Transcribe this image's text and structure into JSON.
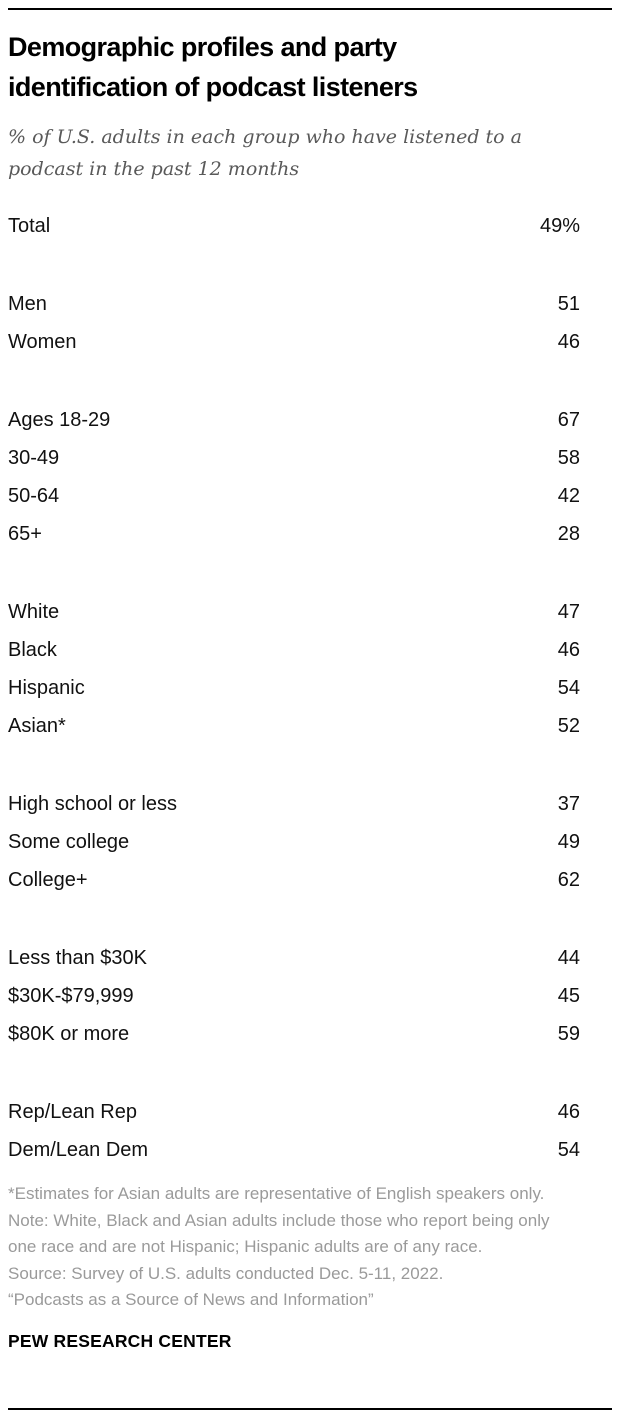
{
  "header": {
    "title": "Demographic profiles and party identification of podcast listeners",
    "subtitle": "% of U.S. adults in each group who have listened to a podcast in the past 12 months"
  },
  "chart_data": {
    "type": "table",
    "title": "Demographic profiles and party identification of podcast listeners",
    "subtitle": "% of U.S. adults in each group who have listened to a podcast in the past 12 months",
    "value_unit": "percent",
    "groups": [
      {
        "name": "total",
        "rows": [
          {
            "label": "Total",
            "value": "49%"
          }
        ]
      },
      {
        "name": "gender",
        "rows": [
          {
            "label": "Men",
            "value": "51"
          },
          {
            "label": "Women",
            "value": "46"
          }
        ]
      },
      {
        "name": "age",
        "rows": [
          {
            "label": "Ages 18-29",
            "value": "67"
          },
          {
            "label": "30-49",
            "value": "58"
          },
          {
            "label": "50-64",
            "value": "42"
          },
          {
            "label": "65+",
            "value": "28"
          }
        ]
      },
      {
        "name": "race-ethnicity",
        "rows": [
          {
            "label": "White",
            "value": "47"
          },
          {
            "label": "Black",
            "value": "46"
          },
          {
            "label": "Hispanic",
            "value": "54"
          },
          {
            "label": "Asian*",
            "value": "52"
          }
        ]
      },
      {
        "name": "education",
        "rows": [
          {
            "label": "High school or less",
            "value": "37"
          },
          {
            "label": "Some college",
            "value": "49"
          },
          {
            "label": "College+",
            "value": "62"
          }
        ]
      },
      {
        "name": "income",
        "rows": [
          {
            "label": "Less than $30K",
            "value": "44"
          },
          {
            "label": "$30K-$79,999",
            "value": "45"
          },
          {
            "label": "$80K or more",
            "value": "59"
          }
        ]
      },
      {
        "name": "party",
        "rows": [
          {
            "label": "Rep/Lean Rep",
            "value": "46"
          },
          {
            "label": "Dem/Lean Dem",
            "value": "54"
          }
        ]
      }
    ]
  },
  "footnotes": [
    "*Estimates for Asian adults are representative of English speakers only.",
    "Note: White, Black and Asian adults include those who report being only one race and are not Hispanic; Hispanic adults are of any race.",
    "Source: Survey of U.S. adults conducted Dec. 5-11, 2022.",
    "“Podcasts as a Source of News and Information”"
  ],
  "footer": {
    "brand": "PEW RESEARCH CENTER"
  },
  "colors": {
    "rule": "#000000",
    "title_text": "#000000",
    "subtitle_text": "#595959",
    "body_text": "#111111",
    "footnote_text": "#9a9a9a"
  }
}
